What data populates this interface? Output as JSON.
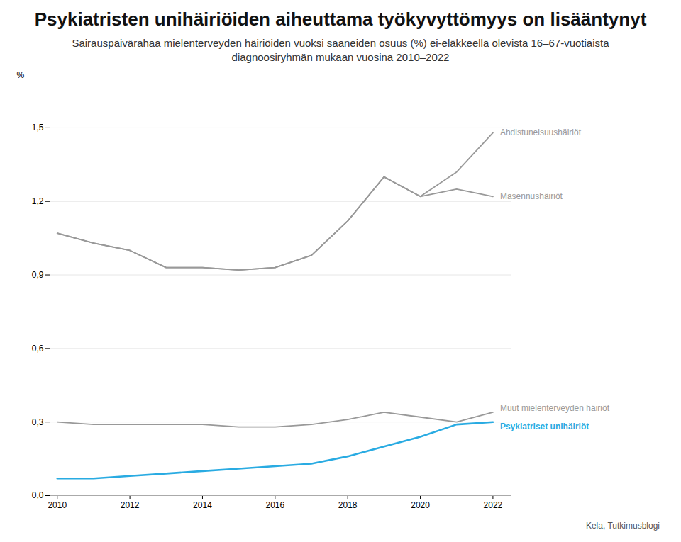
{
  "chart_data": {
    "type": "line",
    "title": "Psykiatristen unihäiriöiden aiheuttama työkyvyttömyys on lisääntynyt",
    "subtitle": "Sairauspäivärahaa mielenterveyden häiriöiden vuoksi saaneiden osuus (%) ei-eläkkeellä olevista 16–67-vuotiaista diagnoosiryhmän mukaan vuosina 2010–2022",
    "source": "Kela, Tutkimusblogi",
    "ylabel": "%",
    "x": [
      2010,
      2011,
      2012,
      2013,
      2014,
      2015,
      2016,
      2017,
      2018,
      2019,
      2020,
      2021,
      2022
    ],
    "series": [
      {
        "name": "Ahdistuneisuushäiriöt",
        "color": "#999999",
        "values": [
          1.07,
          1.03,
          1.0,
          0.93,
          0.93,
          0.92,
          0.93,
          0.98,
          1.12,
          1.3,
          1.22,
          1.32,
          1.48
        ]
      },
      {
        "name": "Masennushäiriöt",
        "color": "#999999",
        "values": [
          1.07,
          1.03,
          1.0,
          0.93,
          0.93,
          0.92,
          0.93,
          0.98,
          1.12,
          1.3,
          1.22,
          1.25,
          1.22
        ]
      },
      {
        "name": "Muut mielenterveyden häiriöt",
        "color": "#999999",
        "values": [
          0.3,
          0.29,
          0.29,
          0.29,
          0.29,
          0.28,
          0.28,
          0.29,
          0.31,
          0.34,
          0.32,
          0.3,
          0.34
        ]
      },
      {
        "name": "Psykiatriset unihäiriöt",
        "color": "#29abe2",
        "values": [
          0.07,
          0.07,
          0.08,
          0.09,
          0.1,
          0.11,
          0.12,
          0.13,
          0.16,
          0.2,
          0.24,
          0.29,
          0.3
        ]
      }
    ],
    "xlim": [
      2009.8,
      2022.5
    ],
    "xticks": [
      2010,
      2012,
      2014,
      2016,
      2018,
      2020,
      2022
    ],
    "ylim": [
      0.0,
      1.65
    ],
    "yticks": [
      {
        "value": 0.0,
        "label": "0,0"
      },
      {
        "value": 0.3,
        "label": "0,3"
      },
      {
        "value": 0.6,
        "label": "0,6"
      },
      {
        "value": 0.9,
        "label": "0,9"
      },
      {
        "value": 1.2,
        "label": "1,2"
      },
      {
        "value": 1.5,
        "label": "1,5"
      }
    ],
    "grid": true
  }
}
